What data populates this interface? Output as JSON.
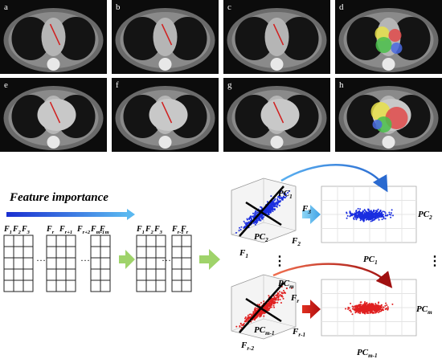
{
  "panels": [
    "a",
    "b",
    "c",
    "d",
    "e",
    "f",
    "g",
    "h"
  ],
  "feature_importance": "Feature importance",
  "header_groups": [
    [
      {
        "b": "F",
        "s": "1"
      },
      {
        "b": "F",
        "s": "2"
      },
      {
        "b": "F",
        "s": "3"
      }
    ],
    [
      {
        "b": "F",
        "s": "r"
      },
      {
        "b": "F",
        "s": "r+1"
      },
      {
        "b": "F",
        "s": "r+2"
      }
    ],
    [
      {
        "b": "F",
        "s": "m-1"
      },
      {
        "b": "F",
        "s": "m"
      }
    ],
    [
      {
        "b": "F",
        "s": "1"
      },
      {
        "b": "F",
        "s": "2"
      },
      {
        "b": "F",
        "s": "3"
      }
    ],
    [
      {
        "b": "F",
        "s": "r-1"
      },
      {
        "b": "F",
        "s": "r"
      }
    ]
  ],
  "plot_labels": [
    {
      "b": "PC",
      "s": "1"
    },
    {
      "b": "F",
      "s": "3"
    },
    {
      "b": "PC",
      "s": "2"
    },
    {
      "b": "F",
      "s": "2"
    },
    {
      "b": "F",
      "s": "1"
    },
    {
      "b": "PC",
      "s": "1"
    },
    {
      "b": "PC",
      "s": "2"
    },
    {
      "b": "F",
      "s": "r"
    },
    {
      "b": "PC",
      "s": "m"
    },
    {
      "b": "PC",
      "s": "m-1"
    },
    {
      "b": "F",
      "s": "r-1"
    },
    {
      "b": "F",
      "s": "r-2"
    },
    {
      "b": "PC",
      "s": "m"
    },
    {
      "b": "PC",
      "s": "m-1"
    }
  ]
}
